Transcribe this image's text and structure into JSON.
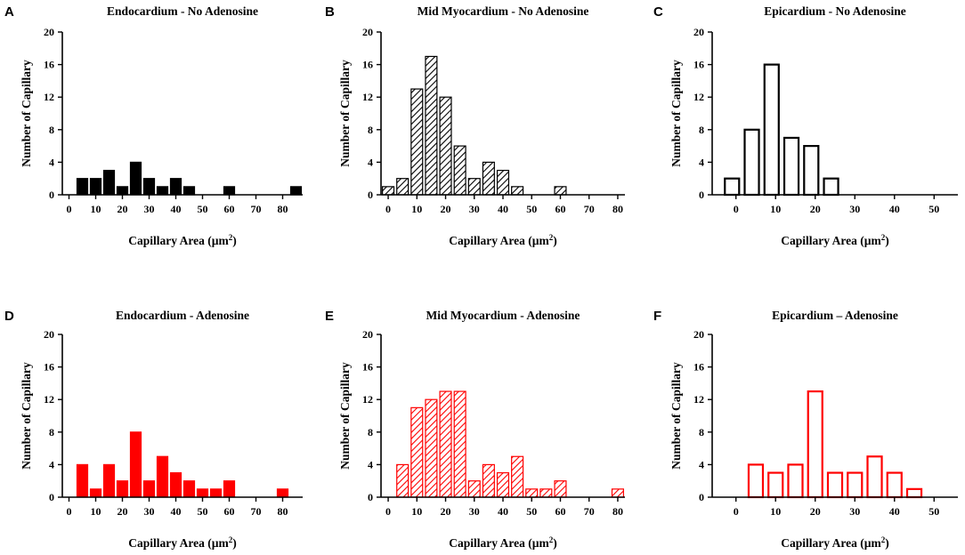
{
  "chart_data": [
    {
      "panel": "A",
      "type": "bar",
      "title": "Endocardium  - No Adenosine",
      "xlabel": "Capillary Area (µm",
      "xlabel_sup": "2",
      "xlabel_end": ")",
      "ylabel": "Number of Capillary",
      "ylim": [
        0,
        20
      ],
      "yticks": [
        0,
        4,
        8,
        12,
        16,
        20
      ],
      "xlim": [
        -2.5,
        87.5
      ],
      "xticks": [
        0,
        10,
        20,
        30,
        40,
        50,
        60,
        70,
        80
      ],
      "bar_width": 4,
      "style": "solid",
      "color": "#000000",
      "x": [
        5,
        10,
        15,
        20,
        25,
        30,
        35,
        40,
        45,
        60,
        85
      ],
      "values": [
        2,
        2,
        3,
        1,
        4,
        2,
        1,
        2,
        1,
        1,
        1
      ]
    },
    {
      "panel": "B",
      "type": "bar",
      "title": "Mid Myocardium  - No Adenosine",
      "xlabel": "Capillary Area (µm",
      "xlabel_sup": "2",
      "xlabel_end": ")",
      "ylabel": "Number of Capillary",
      "ylim": [
        0,
        20
      ],
      "yticks": [
        0,
        4,
        8,
        12,
        16,
        20
      ],
      "xlim": [
        -2.5,
        82.5
      ],
      "xticks": [
        0,
        10,
        20,
        30,
        40,
        50,
        60,
        70,
        80
      ],
      "bar_width": 4,
      "style": "hatched",
      "color": "#000000",
      "x": [
        0,
        5,
        10,
        15,
        20,
        25,
        30,
        35,
        40,
        45,
        60
      ],
      "values": [
        1,
        2,
        13,
        17,
        12,
        6,
        2,
        4,
        3,
        1,
        1
      ]
    },
    {
      "panel": "C",
      "type": "bar",
      "title": "Epicardium  - No Adenosine",
      "xlabel": "Capillary Area (µm",
      "xlabel_sup": "2",
      "xlabel_end": ")",
      "ylabel": "Number of Capillary",
      "ylim": [
        0,
        20
      ],
      "yticks": [
        0,
        4,
        8,
        12,
        16,
        20
      ],
      "xlim": [
        -6,
        56
      ],
      "xticks": [
        0,
        10,
        20,
        30,
        40,
        50
      ],
      "bar_width": 3.6,
      "style": "outline",
      "color": "#000000",
      "x": [
        -1,
        4,
        9,
        14,
        19,
        24
      ],
      "values": [
        2,
        8,
        16,
        7,
        6,
        2
      ]
    },
    {
      "panel": "D",
      "type": "bar",
      "title": "Endocardium  - Adenosine",
      "xlabel": "Capillary Area (µm",
      "xlabel_sup": "2",
      "xlabel_end": ")",
      "ylabel": "Number of Capillary",
      "ylim": [
        0,
        20
      ],
      "yticks": [
        0,
        4,
        8,
        12,
        16,
        20
      ],
      "xlim": [
        -2.5,
        87.5
      ],
      "xticks": [
        0,
        10,
        20,
        30,
        40,
        50,
        60,
        70,
        80
      ],
      "bar_width": 4,
      "style": "solid",
      "color": "#ff0000",
      "x": [
        5,
        10,
        15,
        20,
        25,
        30,
        35,
        40,
        45,
        50,
        55,
        60,
        80
      ],
      "values": [
        4,
        1,
        4,
        2,
        8,
        2,
        5,
        3,
        2,
        1,
        1,
        2,
        1
      ]
    },
    {
      "panel": "E",
      "type": "bar",
      "title": "Mid Myocardium  - Adenosine",
      "xlabel": "Capillary Area (µm",
      "xlabel_sup": "2",
      "xlabel_end": ")",
      "ylabel": "Number of Capillary",
      "ylim": [
        0,
        20
      ],
      "yticks": [
        0,
        4,
        8,
        12,
        16,
        20
      ],
      "xlim": [
        -2.5,
        82.5
      ],
      "xticks": [
        0,
        10,
        20,
        30,
        40,
        50,
        60,
        70,
        80
      ],
      "bar_width": 4,
      "style": "hatched",
      "color": "#ff0000",
      "x": [
        5,
        10,
        15,
        20,
        25,
        30,
        35,
        40,
        45,
        50,
        55,
        60,
        80
      ],
      "values": [
        4,
        11,
        12,
        13,
        13,
        2,
        4,
        3,
        5,
        1,
        1,
        2,
        1
      ]
    },
    {
      "panel": "F",
      "type": "bar",
      "title": "Epicardium – Adenosine",
      "xlabel": "Capillary Area (µm",
      "xlabel_sup": "2",
      "xlabel_end": ")",
      "ylabel": "Number of Capillary",
      "ylim": [
        0,
        20
      ],
      "yticks": [
        0,
        4,
        8,
        12,
        16,
        20
      ],
      "xlim": [
        -6,
        56
      ],
      "xticks": [
        0,
        10,
        20,
        30,
        40,
        50
      ],
      "bar_width": 3.6,
      "style": "outline",
      "color": "#ff0000",
      "x": [
        5,
        10,
        15,
        20,
        25,
        30,
        35,
        40,
        45
      ],
      "values": [
        4,
        3,
        4,
        13,
        3,
        3,
        5,
        3,
        1
      ]
    }
  ]
}
